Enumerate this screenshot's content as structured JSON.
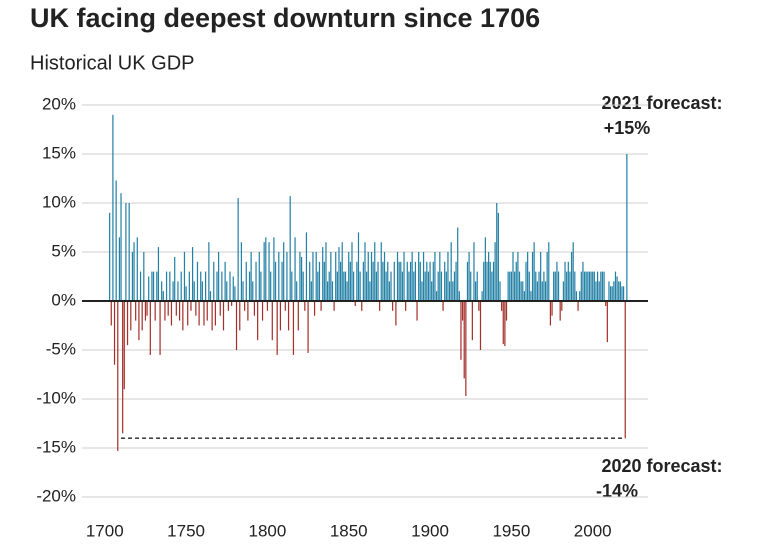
{
  "chart_data": {
    "type": "bar",
    "title": "UK facing deepest downturn since 1706",
    "subtitle": "Historical UK GDP",
    "annotations": [
      {
        "text": "2021 forecast:",
        "value_text": "+15%"
      },
      {
        "text": "2020 forecast:",
        "value_text": "-14%"
      }
    ],
    "x": [
      1700,
      1701,
      1702,
      1703,
      1704,
      1705,
      1706,
      1707,
      1708,
      1709,
      1710,
      1711,
      1712,
      1713,
      1714,
      1715,
      1716,
      1717,
      1718,
      1719,
      1720,
      1721,
      1722,
      1723,
      1724,
      1725,
      1726,
      1727,
      1728,
      1729,
      1730,
      1731,
      1732,
      1733,
      1734,
      1735,
      1736,
      1737,
      1738,
      1739,
      1740,
      1741,
      1742,
      1743,
      1744,
      1745,
      1746,
      1747,
      1748,
      1749,
      1750,
      1751,
      1752,
      1753,
      1754,
      1755,
      1756,
      1757,
      1758,
      1759,
      1760,
      1761,
      1762,
      1763,
      1764,
      1765,
      1766,
      1767,
      1768,
      1769,
      1770,
      1771,
      1772,
      1773,
      1774,
      1775,
      1776,
      1777,
      1778,
      1779,
      1780,
      1781,
      1782,
      1783,
      1784,
      1785,
      1786,
      1787,
      1788,
      1789,
      1790,
      1791,
      1792,
      1793,
      1794,
      1795,
      1796,
      1797,
      1798,
      1799,
      1800,
      1801,
      1802,
      1803,
      1804,
      1805,
      1806,
      1807,
      1808,
      1809,
      1810,
      1811,
      1812,
      1813,
      1814,
      1815,
      1816,
      1817,
      1818,
      1819,
      1820,
      1821,
      1822,
      1823,
      1824,
      1825,
      1826,
      1827,
      1828,
      1829,
      1830,
      1831,
      1832,
      1833,
      1834,
      1835,
      1836,
      1837,
      1838,
      1839,
      1840,
      1841,
      1842,
      1843,
      1844,
      1845,
      1846,
      1847,
      1848,
      1849,
      1850,
      1851,
      1852,
      1853,
      1854,
      1855,
      1856,
      1857,
      1858,
      1859,
      1860,
      1861,
      1862,
      1863,
      1864,
      1865,
      1866,
      1867,
      1868,
      1869,
      1870,
      1871,
      1872,
      1873,
      1874,
      1875,
      1876,
      1877,
      1878,
      1879,
      1880,
      1881,
      1882,
      1883,
      1884,
      1885,
      1886,
      1887,
      1888,
      1889,
      1890,
      1891,
      1892,
      1893,
      1894,
      1895,
      1896,
      1897,
      1898,
      1899,
      1900,
      1901,
      1902,
      1903,
      1904,
      1905,
      1906,
      1907,
      1908,
      1909,
      1910,
      1911,
      1912,
      1913,
      1914,
      1915,
      1916,
      1917,
      1918,
      1919,
      1920,
      1921,
      1922,
      1923,
      1924,
      1925,
      1926,
      1927,
      1928,
      1929,
      1930,
      1931,
      1932,
      1933,
      1934,
      1935,
      1936,
      1937,
      1938,
      1939,
      1940,
      1941,
      1942,
      1943,
      1944,
      1945,
      1946,
      1947,
      1948,
      1949,
      1950,
      1951,
      1952,
      1953,
      1954,
      1955,
      1956,
      1957,
      1958,
      1959,
      1960,
      1961,
      1962,
      1963,
      1964,
      1965,
      1966,
      1967,
      1968,
      1969,
      1970,
      1971,
      1972,
      1973,
      1974,
      1975,
      1976,
      1977,
      1978,
      1979,
      1980,
      1981,
      1982,
      1983,
      1984,
      1985,
      1986,
      1987,
      1988,
      1989,
      1990,
      1991,
      1992,
      1993,
      1994,
      1995,
      1996,
      1997,
      1998,
      1999,
      2000,
      2001,
      2002,
      2003,
      2004,
      2005,
      2006,
      2007,
      2008,
      2009,
      2010,
      2011,
      2012,
      2013,
      2014,
      2015,
      2016,
      2017,
      2018,
      2019,
      2020,
      2021
    ],
    "values": [
      0,
      0,
      0,
      9,
      -2.5,
      19,
      -6.5,
      12.3,
      -15.3,
      6.5,
      11,
      -13.5,
      -9,
      10,
      -4.5,
      10,
      -3,
      5,
      6,
      -2,
      6.5,
      -4,
      3,
      -3,
      5,
      -2,
      -1.5,
      2.5,
      -5.5,
      3,
      3,
      -2,
      3,
      5.5,
      -5.5,
      2,
      1,
      -2,
      3,
      -1.5,
      3,
      -2.5,
      2,
      4.5,
      -1.5,
      2,
      -2,
      3,
      -3,
      5,
      1.5,
      -2.5,
      3,
      -1,
      5.5,
      2,
      -1.5,
      4,
      -2.5,
      3,
      2,
      -2.5,
      3,
      -2,
      6,
      1,
      -3,
      4,
      -2.5,
      3,
      5,
      -1.5,
      3,
      -3,
      4,
      2,
      -1,
      3,
      -0.5,
      2.5,
      1.5,
      -5,
      10.5,
      -3,
      6,
      2,
      -1,
      4,
      -2,
      3,
      5,
      2,
      -1.5,
      4,
      -4,
      5,
      3,
      -2,
      6,
      6.5,
      -1,
      6,
      3,
      -4,
      6.5,
      4,
      -5.5,
      5,
      -3,
      4,
      6,
      -1,
      5,
      -3,
      10.7,
      3,
      -5.5,
      6.5,
      2,
      -3,
      5,
      4.5,
      3,
      -1,
      7,
      -5.3,
      4,
      2,
      5,
      -1.5,
      5,
      3,
      4,
      -1,
      5.5,
      4,
      6,
      2,
      3,
      5,
      2,
      -1,
      5,
      3,
      5.5,
      4,
      6,
      3,
      3,
      2,
      5,
      4,
      6,
      3,
      -0.5,
      4,
      7,
      3,
      -1,
      4,
      6,
      3,
      5,
      2,
      5,
      4,
      6,
      3,
      4,
      -1,
      6,
      4,
      5,
      3,
      4,
      2,
      3,
      -1,
      4,
      -2.5,
      5,
      4,
      4,
      3,
      5,
      -1,
      4,
      3,
      4,
      5,
      3,
      4,
      -2,
      5,
      4,
      2,
      5,
      3,
      4,
      3,
      4,
      2,
      4,
      5,
      1,
      3,
      5,
      3,
      -1,
      4,
      3,
      5,
      2,
      6,
      2,
      3,
      4,
      7.5,
      1,
      -6,
      -2,
      -7.9,
      -9.7,
      4,
      5,
      3,
      -4,
      6,
      2,
      3,
      -1,
      -5,
      1,
      4,
      6.5,
      4,
      5,
      4,
      3,
      4,
      6,
      10,
      9,
      2,
      -1,
      -4.4,
      -4.6,
      -2,
      3,
      3,
      3,
      5,
      3,
      4,
      5,
      3,
      2,
      2,
      1,
      4,
      5,
      3,
      1,
      5,
      6,
      3,
      2,
      3,
      5,
      2,
      3,
      2,
      5,
      6,
      -2.5,
      -1.5,
      3,
      3,
      4,
      3,
      -2,
      -1,
      2,
      4,
      3,
      4,
      3,
      5,
      6,
      3,
      1,
      -1,
      1,
      3,
      4,
      3,
      3,
      3,
      3,
      3,
      3,
      3,
      2,
      3,
      2,
      3,
      3,
      3,
      -0.5,
      -4.2,
      2,
      1.5,
      1.5,
      2,
      3,
      2.5,
      2,
      2,
      1.5,
      1.5,
      -14,
      15
    ],
    "color_positive": "#2481a6",
    "color_negative": "#a5302b",
    "reference_line": {
      "y": -14,
      "x": [
        1710,
        2020
      ]
    },
    "xlim": [
      1686,
      2034
    ],
    "xticks": [
      1700,
      1750,
      1800,
      1850,
      1900,
      1950,
      2000
    ],
    "ylim": [
      -20,
      20
    ],
    "yticks": [
      {
        "value": 20,
        "label": "20%"
      },
      {
        "value": 15,
        "label": "15%"
      },
      {
        "value": 10,
        "label": "10%"
      },
      {
        "value": 5,
        "label": "5%"
      },
      {
        "value": 0,
        "label": "0%"
      },
      {
        "value": -5,
        "label": "-5%"
      },
      {
        "value": -10,
        "label": "-10%"
      },
      {
        "value": -15,
        "label": "-15%"
      },
      {
        "value": -20,
        "label": "-20%"
      }
    ],
    "grid": true
  }
}
